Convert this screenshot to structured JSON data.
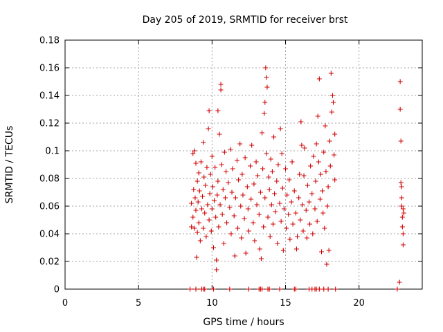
{
  "chart_data": {
    "type": "scatter",
    "title": "Day 205 of 2019, SRMTID for receiver brst",
    "xlabel": "GPS time / hours",
    "ylabel": "SRMTID / TECUs",
    "xlim": [
      0,
      24.3
    ],
    "ylim": [
      0,
      0.18
    ],
    "xticks": [
      0,
      5,
      10,
      15,
      20
    ],
    "xtick_labels": [
      "0",
      "5",
      "10",
      "15",
      "20"
    ],
    "yticks": [
      0,
      0.02,
      0.04,
      0.06,
      0.08,
      0.1,
      0.12,
      0.14,
      0.16,
      0.18
    ],
    "ytick_labels": [
      "0",
      "0.02",
      "0.04",
      "0.06",
      "0.08",
      "0.1",
      "0.12",
      "0.14",
      "0.16",
      "0.18"
    ],
    "grid": true,
    "marker": "plus",
    "color": "#d00000",
    "series": [
      {
        "name": "SRMTID",
        "points": [
          [
            8.6,
            0.045
          ],
          [
            8.6,
            0.062
          ],
          [
            8.7,
            0.098
          ],
          [
            8.7,
            0.052
          ],
          [
            8.75,
            0.072
          ],
          [
            8.8,
            0.1
          ],
          [
            8.8,
            0.044
          ],
          [
            8.85,
            0.066
          ],
          [
            8.9,
            0.091
          ],
          [
            8.9,
            0.057
          ],
          [
            8.95,
            0.023
          ],
          [
            9.0,
            0.078
          ],
          [
            9.0,
            0.041
          ],
          [
            9.05,
            0.063
          ],
          [
            9.1,
            0.084
          ],
          [
            9.1,
            0.048
          ],
          [
            9.15,
            0.071
          ],
          [
            9.2,
            0.035
          ],
          [
            9.25,
            0.092
          ],
          [
            9.3,
            0.058
          ],
          [
            9.35,
            0.067
          ],
          [
            9.4,
            0.106
          ],
          [
            9.4,
            0.044
          ],
          [
            9.45,
            0.081
          ],
          [
            9.5,
            0.055
          ],
          [
            9.55,
            0.075
          ],
          [
            9.6,
            0.038
          ],
          [
            9.65,
            0.088
          ],
          [
            9.7,
            0.061
          ],
          [
            9.75,
            0.116
          ],
          [
            9.8,
            0.129
          ],
          [
            9.8,
            0.05
          ],
          [
            9.85,
            0.069
          ],
          [
            9.9,
            0.083
          ],
          [
            9.95,
            0.042
          ],
          [
            10.0,
            0.096
          ],
          [
            10.0,
            0.058
          ],
          [
            10.05,
            0.074
          ],
          [
            10.1,
            0.03
          ],
          [
            10.15,
            0.064
          ],
          [
            10.2,
            0.088
          ],
          [
            10.25,
            0.052
          ],
          [
            10.3,
            0.021
          ],
          [
            10.3,
            0.014
          ],
          [
            10.35,
            0.068
          ],
          [
            10.4,
            0.129
          ],
          [
            10.4,
            0.078
          ],
          [
            10.45,
            0.045
          ],
          [
            10.5,
            0.112
          ],
          [
            10.55,
            0.061
          ],
          [
            10.6,
            0.148
          ],
          [
            10.6,
            0.144
          ],
          [
            10.65,
            0.09
          ],
          [
            10.7,
            0.054
          ],
          [
            10.75,
            0.072
          ],
          [
            10.8,
            0.033
          ],
          [
            10.85,
            0.099
          ],
          [
            10.9,
            0.066
          ],
          [
            10.95,
            0.085
          ],
          [
            11.0,
            0.048
          ],
          [
            11.1,
            0.077
          ],
          [
            11.2,
            0.059
          ],
          [
            11.25,
            0.101
          ],
          [
            11.3,
            0.04
          ],
          [
            11.35,
            0.07
          ],
          [
            11.4,
            0.087
          ],
          [
            11.5,
            0.053
          ],
          [
            11.55,
            0.024
          ],
          [
            11.6,
            0.066
          ],
          [
            11.7,
            0.093
          ],
          [
            11.75,
            0.044
          ],
          [
            11.8,
            0.079
          ],
          [
            11.9,
            0.105
          ],
          [
            11.95,
            0.06
          ],
          [
            12.0,
            0.037
          ],
          [
            12.05,
            0.083
          ],
          [
            12.1,
            0.068
          ],
          [
            12.2,
            0.051
          ],
          [
            12.25,
            0.095
          ],
          [
            12.3,
            0.026
          ],
          [
            12.4,
            0.074
          ],
          [
            12.45,
            0.058
          ],
          [
            12.5,
            0.042
          ],
          [
            12.6,
            0.089
          ],
          [
            12.65,
            0.065
          ],
          [
            12.7,
            0.104
          ],
          [
            12.8,
            0.048
          ],
          [
            12.85,
            0.076
          ],
          [
            12.9,
            0.035
          ],
          [
            13.0,
            0.092
          ],
          [
            13.05,
            0.061
          ],
          [
            13.1,
            0.082
          ],
          [
            13.2,
            0.054
          ],
          [
            13.25,
            0.029
          ],
          [
            13.3,
            0.07
          ],
          [
            13.35,
            0.022
          ],
          [
            13.4,
            0.113
          ],
          [
            13.45,
            0.087
          ],
          [
            13.5,
            0.045
          ],
          [
            13.55,
            0.127
          ],
          [
            13.6,
            0.135
          ],
          [
            13.6,
            0.066
          ],
          [
            13.65,
            0.16
          ],
          [
            13.7,
            0.153
          ],
          [
            13.7,
            0.098
          ],
          [
            13.75,
            0.146
          ],
          [
            13.8,
            0.052
          ],
          [
            13.85,
            0.081
          ],
          [
            13.9,
            0.072
          ],
          [
            13.95,
            0.038
          ],
          [
            14.0,
            0.094
          ],
          [
            14.05,
            0.061
          ],
          [
            14.1,
            0.085
          ],
          [
            14.15,
            0.047
          ],
          [
            14.2,
            0.11
          ],
          [
            14.25,
            0.069
          ],
          [
            14.3,
            0.056
          ],
          [
            14.4,
            0.078
          ],
          [
            14.45,
            0.033
          ],
          [
            14.5,
            0.09
          ],
          [
            14.6,
            0.062
          ],
          [
            14.65,
            0.116
          ],
          [
            14.7,
            0.049
          ],
          [
            14.75,
            0.098
          ],
          [
            14.8,
            0.073
          ],
          [
            14.85,
            0.028
          ],
          [
            14.9,
            0.058
          ],
          [
            15.0,
            0.087
          ],
          [
            15.05,
            0.044
          ],
          [
            15.1,
            0.068
          ],
          [
            15.2,
            0.054
          ],
          [
            15.25,
            0.079
          ],
          [
            15.3,
            0.036
          ],
          [
            15.4,
            0.063
          ],
          [
            15.45,
            0.092
          ],
          [
            15.5,
            0.047
          ],
          [
            15.6,
            0.071
          ],
          [
            15.7,
            0.055
          ],
          [
            15.75,
            0.029
          ],
          [
            15.8,
            0.038
          ],
          [
            15.9,
            0.066
          ],
          [
            15.95,
            0.083
          ],
          [
            16.0,
            0.05
          ],
          [
            16.05,
            0.121
          ],
          [
            16.1,
            0.104
          ],
          [
            16.15,
            0.061
          ],
          [
            16.2,
            0.042
          ],
          [
            16.25,
            0.082
          ],
          [
            16.3,
            0.102
          ],
          [
            16.4,
            0.057
          ],
          [
            16.45,
            0.037
          ],
          [
            16.5,
            0.075
          ],
          [
            16.6,
            0.063
          ],
          [
            16.65,
            0.047
          ],
          [
            16.7,
            0.089
          ],
          [
            16.8,
            0.069
          ],
          [
            16.85,
            0.04
          ],
          [
            16.9,
            0.096
          ],
          [
            17.0,
            0.058
          ],
          [
            17.05,
            0.078
          ],
          [
            17.1,
            0.105
          ],
          [
            17.15,
            0.049
          ],
          [
            17.2,
            0.125
          ],
          [
            17.25,
            0.092
          ],
          [
            17.3,
            0.152
          ],
          [
            17.35,
            0.065
          ],
          [
            17.4,
            0.083
          ],
          [
            17.45,
            0.027
          ],
          [
            17.5,
            0.071
          ],
          [
            17.55,
            0.055
          ],
          [
            17.6,
            0.099
          ],
          [
            17.65,
            0.044
          ],
          [
            17.7,
            0.118
          ],
          [
            17.75,
            0.085
          ],
          [
            17.8,
            0.018
          ],
          [
            17.85,
            0.06
          ],
          [
            17.9,
            0.074
          ],
          [
            17.95,
            0.028
          ],
          [
            18.0,
            0.107
          ],
          [
            18.05,
            0.089
          ],
          [
            18.1,
            0.156
          ],
          [
            18.15,
            0.128
          ],
          [
            18.2,
            0.14
          ],
          [
            18.25,
            0.135
          ],
          [
            18.3,
            0.097
          ],
          [
            18.35,
            0.112
          ],
          [
            18.35,
            0.079
          ],
          [
            22.75,
            0.005
          ],
          [
            22.8,
            0.15
          ],
          [
            22.8,
            0.13
          ],
          [
            22.85,
            0.107
          ],
          [
            22.85,
            0.077
          ],
          [
            22.9,
            0.074
          ],
          [
            22.9,
            0.06
          ],
          [
            22.95,
            0.052
          ],
          [
            22.95,
            0.045
          ],
          [
            23.0,
            0.032
          ],
          [
            23.0,
            0.058
          ],
          [
            23.0,
            0.04
          ],
          [
            22.9,
            0.066
          ],
          [
            23.05,
            0.055
          ],
          [
            8.5,
            0
          ],
          [
            8.9,
            0
          ],
          [
            9.3,
            0
          ],
          [
            9.4,
            0
          ],
          [
            9.5,
            0
          ],
          [
            10.1,
            0
          ],
          [
            11.2,
            0
          ],
          [
            12.5,
            0
          ],
          [
            13.2,
            0
          ],
          [
            13.3,
            0
          ],
          [
            13.4,
            0
          ],
          [
            13.8,
            0
          ],
          [
            13.9,
            0
          ],
          [
            14.6,
            0
          ],
          [
            15.6,
            0
          ],
          [
            15.7,
            0
          ],
          [
            16.6,
            0
          ],
          [
            16.8,
            0
          ],
          [
            17.0,
            0
          ],
          [
            17.1,
            0
          ],
          [
            17.3,
            0
          ],
          [
            17.6,
            0
          ],
          [
            17.9,
            0
          ],
          [
            18.4,
            0
          ],
          [
            22.6,
            0
          ]
        ]
      }
    ]
  }
}
